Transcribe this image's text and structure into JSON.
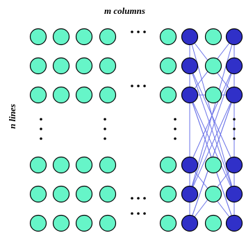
{
  "labels": {
    "columns": "m columns",
    "lines": "n lines"
  },
  "grid": {
    "visible_rows_top": 3,
    "visible_rows_bottom": 3,
    "left_columns": 4,
    "right_columns": 4,
    "highlighted_right_columns": [
      1,
      3
    ]
  },
  "colors": {
    "inactive_fill": "#66f5c8",
    "active_fill": "#3030c8",
    "node_stroke": "#000000",
    "link_stroke": "#6a72e8",
    "dots": "#000000"
  },
  "icons": {
    "node": "circle-node",
    "ellipsis": "dots"
  }
}
